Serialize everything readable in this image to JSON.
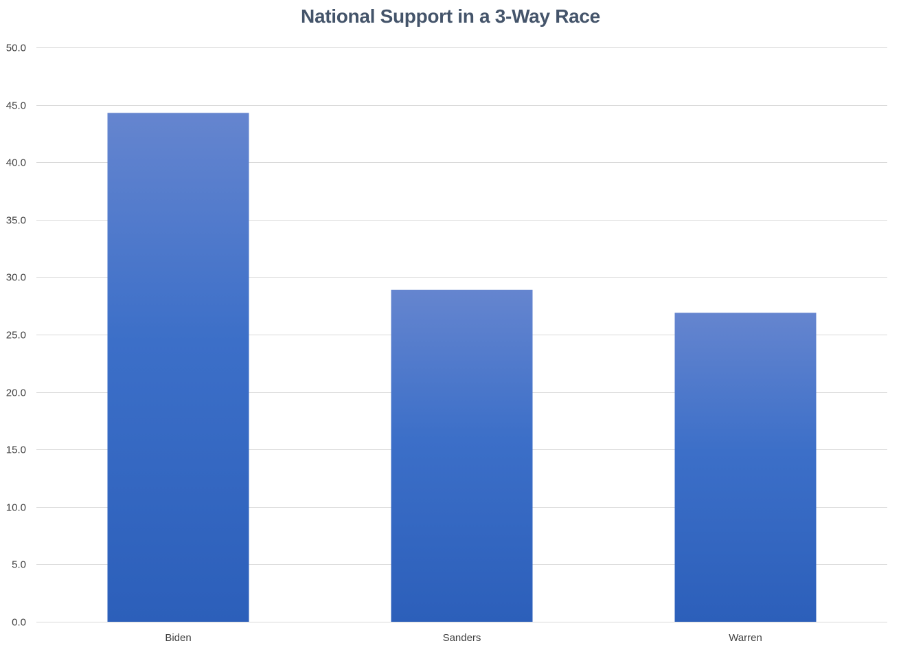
{
  "chart_data": {
    "type": "bar",
    "title": "National Support in a 3-Way Race",
    "xlabel": "",
    "ylabel": "",
    "categories": [
      "Biden",
      "Sanders",
      "Warren"
    ],
    "values": [
      44.3,
      28.9,
      26.9
    ],
    "ylim": [
      0,
      50
    ],
    "yticks": [
      "0.0",
      "5.0",
      "10.0",
      "15.0",
      "20.0",
      "25.0",
      "30.0",
      "35.0",
      "40.0",
      "45.0",
      "50.0"
    ],
    "grid": true,
    "legend": "none",
    "bar_color_top": "#6585cf",
    "bar_color_bottom": "#2c5fba",
    "title_color": "#44546a"
  }
}
